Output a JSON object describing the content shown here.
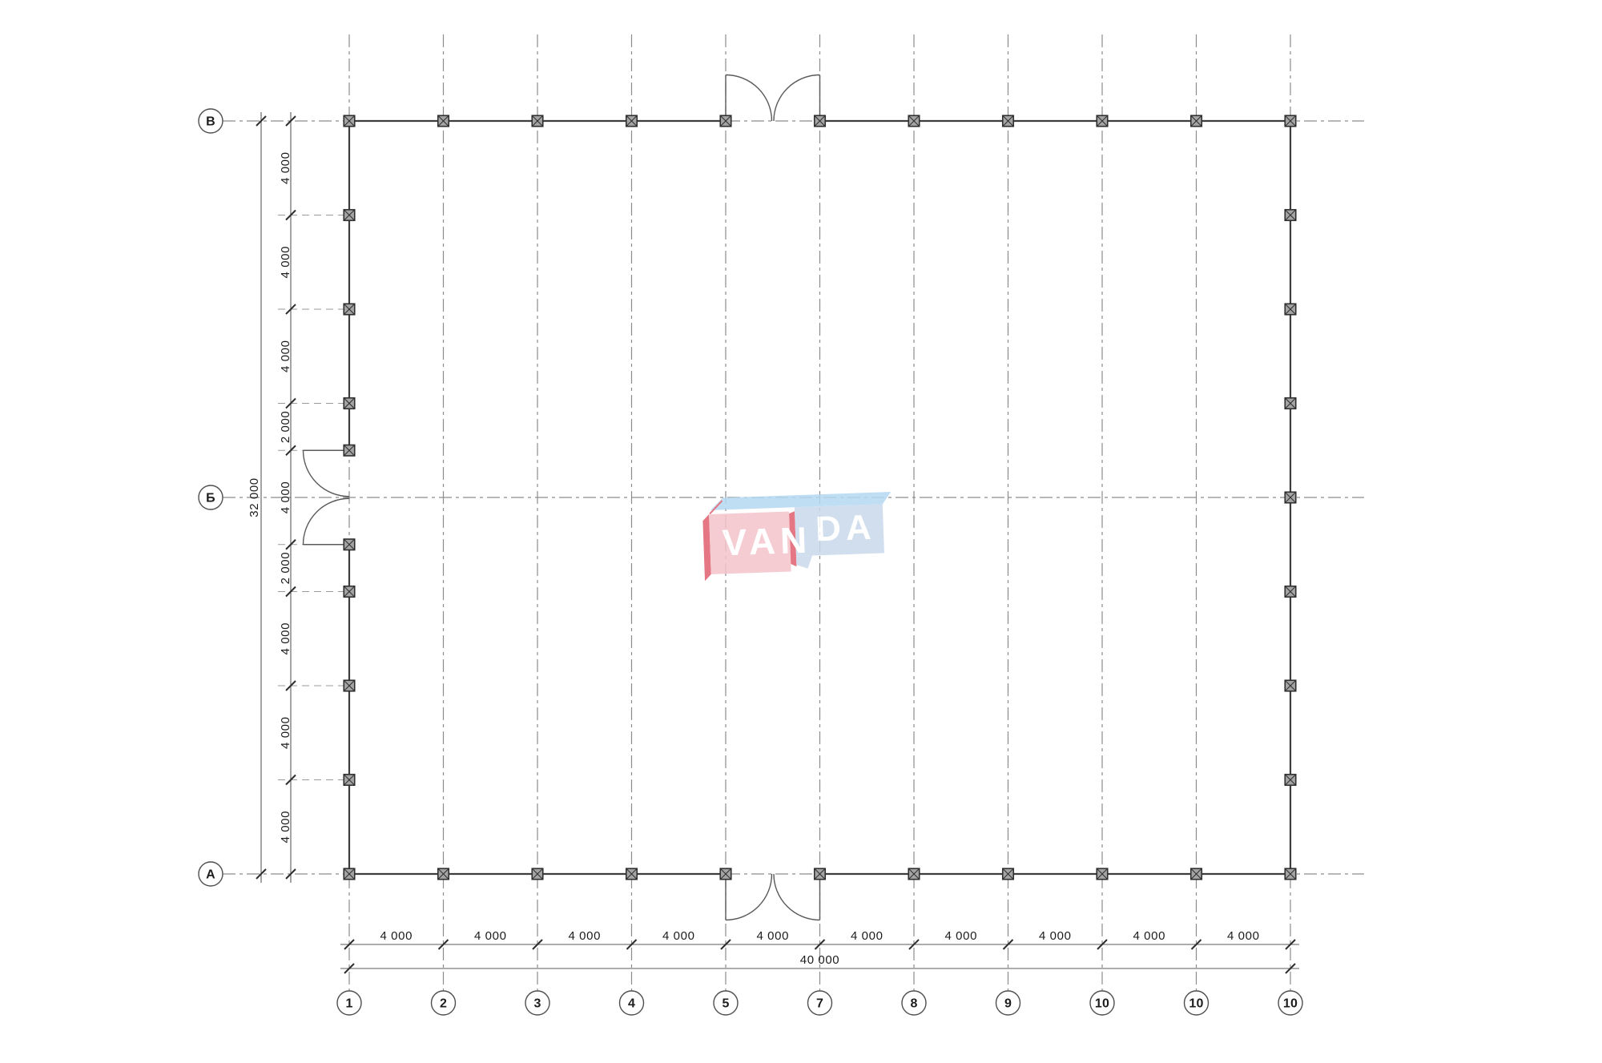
{
  "axes": {
    "vertical_bubbles": [
      "1",
      "2",
      "3",
      "4",
      "5",
      "7",
      "8",
      "9",
      "10",
      "10",
      "10"
    ],
    "horizontal_bubbles": [
      "В",
      "Б",
      "А"
    ]
  },
  "dimensions": {
    "bottom_segments": [
      "4 000",
      "4 000",
      "4 000",
      "4 000",
      "4 000",
      "4 000",
      "4 000",
      "4 000",
      "4 000",
      "4 000"
    ],
    "bottom_total": "40 000",
    "left_segments": [
      "4 000",
      "4 000",
      "4 000",
      "2 000",
      "4 000",
      "2 000",
      "4 000",
      "4 000",
      "4 000"
    ],
    "left_total": "32 000"
  },
  "watermark": {
    "text_left": "VAN",
    "text_right": "DA",
    "colors": {
      "pink_face": "#f5c4cc",
      "red_edge": "#e0606e",
      "blue_face": "#c8d9ec",
      "blue_top": "#b5d9f3",
      "text": "#ffffff"
    }
  },
  "colors": {
    "wall": "#3d3d3d",
    "axis_line": "#8c8c8c",
    "dimension_line": "#5b5b5b",
    "tick": "#2e2e2e",
    "column_fill": "#a4a4a4",
    "column_stroke": "#303030",
    "text": "#1c1c1c"
  }
}
